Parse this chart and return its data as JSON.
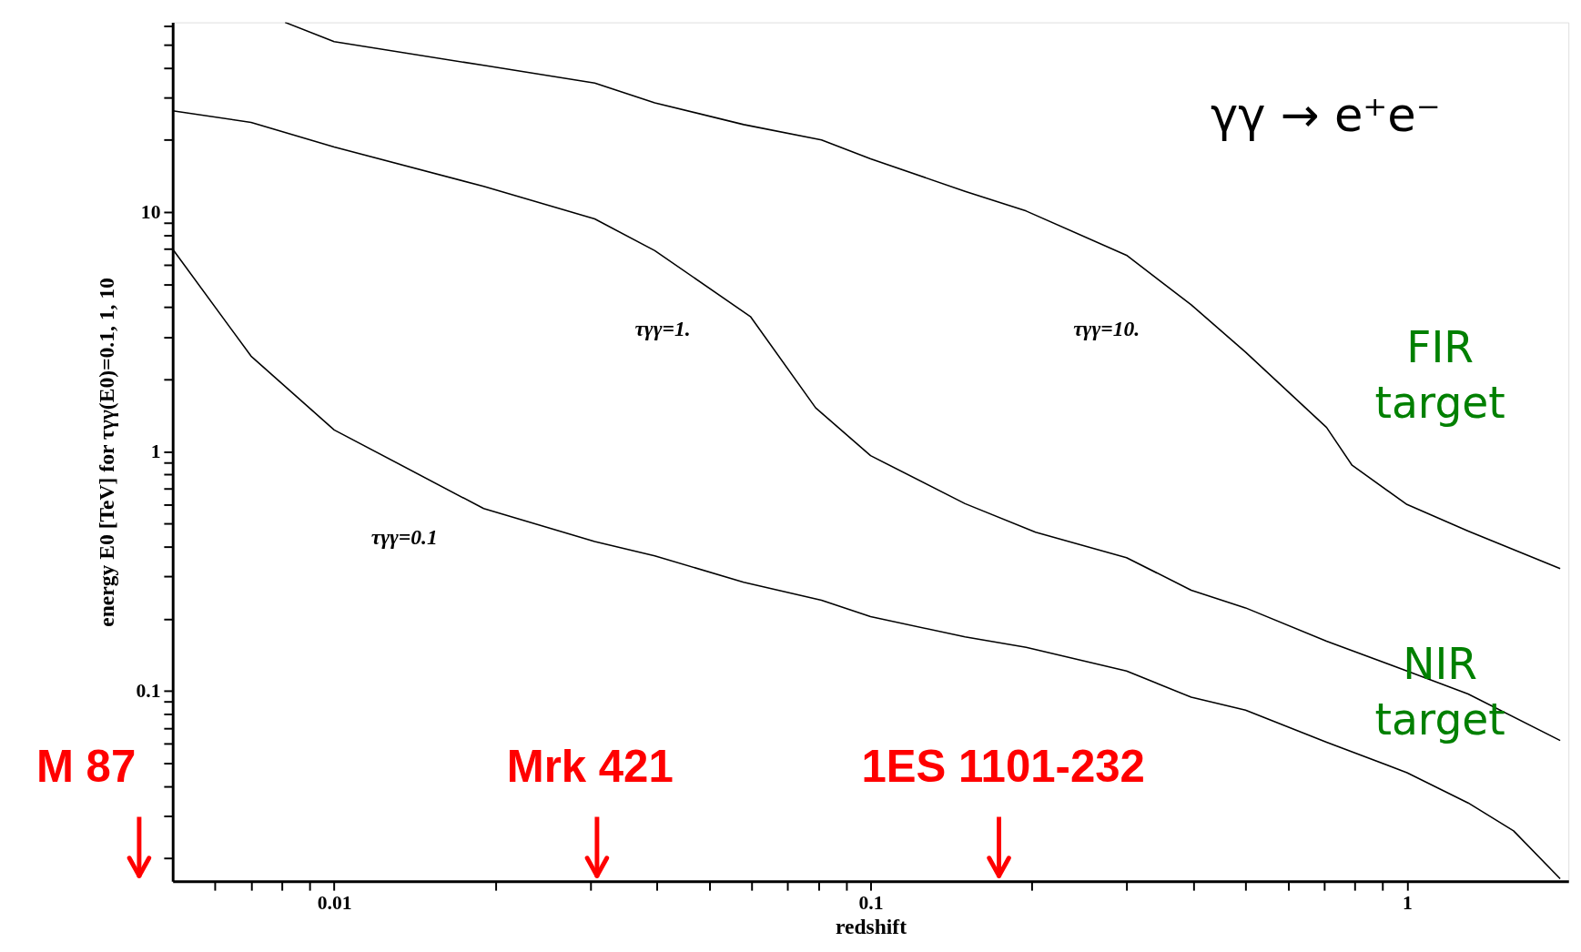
{
  "chart_data": {
    "type": "line",
    "xlabel": "redshift",
    "ylabel": "energy E0 [TeV] for τγγ(E0)=0.1, 1, 10",
    "log": "xy",
    "grid": false,
    "marker": "none",
    "line_style": "solid",
    "xlim": [
      0.005,
      2
    ],
    "ylim": [
      0.016,
      62
    ],
    "xticks": [
      {
        "value": 0.006,
        "label": null
      },
      {
        "value": 0.007,
        "label": null
      },
      {
        "value": 0.008,
        "label": null
      },
      {
        "value": 0.009,
        "label": null
      },
      0.01,
      {
        "value": 0.02,
        "label": null
      },
      {
        "value": 0.03,
        "label": null
      },
      {
        "value": 0.04,
        "label": null
      },
      {
        "value": 0.05,
        "label": null
      },
      {
        "value": 0.06,
        "label": null
      },
      {
        "value": 0.07,
        "label": null
      },
      {
        "value": 0.08,
        "label": null
      },
      {
        "value": 0.09,
        "label": null
      },
      0.1,
      {
        "value": 0.2,
        "label": null
      },
      {
        "value": 0.3,
        "label": null
      },
      {
        "value": 0.4,
        "label": null
      },
      {
        "value": 0.5,
        "label": null
      },
      {
        "value": 0.6,
        "label": null
      },
      {
        "value": 0.7,
        "label": null
      },
      {
        "value": 0.8,
        "label": null
      },
      {
        "value": 0.9,
        "label": null
      },
      1
    ],
    "yticks": [
      {
        "value": 0.02,
        "label": null
      },
      {
        "value": 0.03,
        "label": null
      },
      {
        "value": 0.04,
        "label": null
      },
      {
        "value": 0.05,
        "label": null
      },
      {
        "value": 0.06,
        "label": null
      },
      {
        "value": 0.07,
        "label": null
      },
      {
        "value": 0.08,
        "label": null
      },
      {
        "value": 0.09,
        "label": null
      },
      0.1,
      {
        "value": 0.2,
        "label": null
      },
      {
        "value": 0.3,
        "label": null
      },
      {
        "value": 0.4,
        "label": null
      },
      {
        "value": 0.5,
        "label": null
      },
      {
        "value": 0.6,
        "label": null
      },
      {
        "value": 0.7,
        "label": null
      },
      {
        "value": 0.8,
        "label": null
      },
      {
        "value": 0.9,
        "label": null
      },
      1,
      {
        "value": 2,
        "label": null
      },
      {
        "value": 3,
        "label": null
      },
      {
        "value": 4,
        "label": null
      },
      {
        "value": 5,
        "label": null
      },
      {
        "value": 6,
        "label": null
      },
      {
        "value": 7,
        "label": null
      },
      {
        "value": 8,
        "label": null
      },
      {
        "value": 9,
        "label": null
      },
      10,
      {
        "value": 20,
        "label": null
      },
      {
        "value": 30,
        "label": null
      },
      {
        "value": 40,
        "label": null
      },
      {
        "value": 50,
        "label": null
      },
      {
        "value": 60,
        "label": null
      }
    ],
    "series": [
      {
        "color": "#000000",
        "x": [
          0.005,
          0.007,
          0.01,
          0.019,
          0.0306,
          0.0396,
          0.058,
          0.081,
          0.1,
          0.15,
          0.195,
          0.3,
          0.396,
          0.5,
          0.708,
          1,
          1.3,
          1.58,
          1.93
        ],
        "values": [
          7.0,
          2.5,
          1.23,
          0.577,
          0.42,
          0.366,
          0.284,
          0.239,
          0.204,
          0.168,
          0.152,
          0.121,
          0.094,
          0.083,
          0.061,
          0.0455,
          0.034,
          0.026,
          0.0164
        ]
      },
      {
        "color": "#000000",
        "x": [
          0.005,
          0.007,
          0.01,
          0.019,
          0.0306,
          0.0396,
          0.0597,
          0.079,
          0.1,
          0.15,
          0.203,
          0.3,
          0.396,
          0.5,
          0.708,
          1,
          1.3,
          1.93
        ],
        "values": [
          26.5,
          23.7,
          18.7,
          12.8,
          9.36,
          6.9,
          3.66,
          1.52,
          0.96,
          0.605,
          0.46,
          0.36,
          0.263,
          0.222,
          0.161,
          0.121,
          0.097,
          0.062
        ]
      },
      {
        "color": "#000000",
        "x": [
          0.0081,
          0.01,
          0.019,
          0.0306,
          0.0396,
          0.058,
          0.081,
          0.1,
          0.15,
          0.195,
          0.3,
          0.396,
          0.5,
          0.708,
          0.79,
          1,
          1.3,
          1.93
        ],
        "values": [
          62,
          51.5,
          41,
          34.6,
          28.6,
          23.2,
          20,
          16.7,
          12.2,
          10.1,
          6.6,
          4.1,
          2.6,
          1.26,
          0.875,
          0.6,
          0.465,
          0.324
        ]
      }
    ],
    "annotations": [
      "γγ → e⁺e⁻",
      "FIR target",
      "NIR target",
      "M 87",
      "τγγ=0.1",
      "τγγ=1.",
      "τγγ=10.",
      "Mrk 421",
      "1ES 1101-232"
    ]
  }
}
